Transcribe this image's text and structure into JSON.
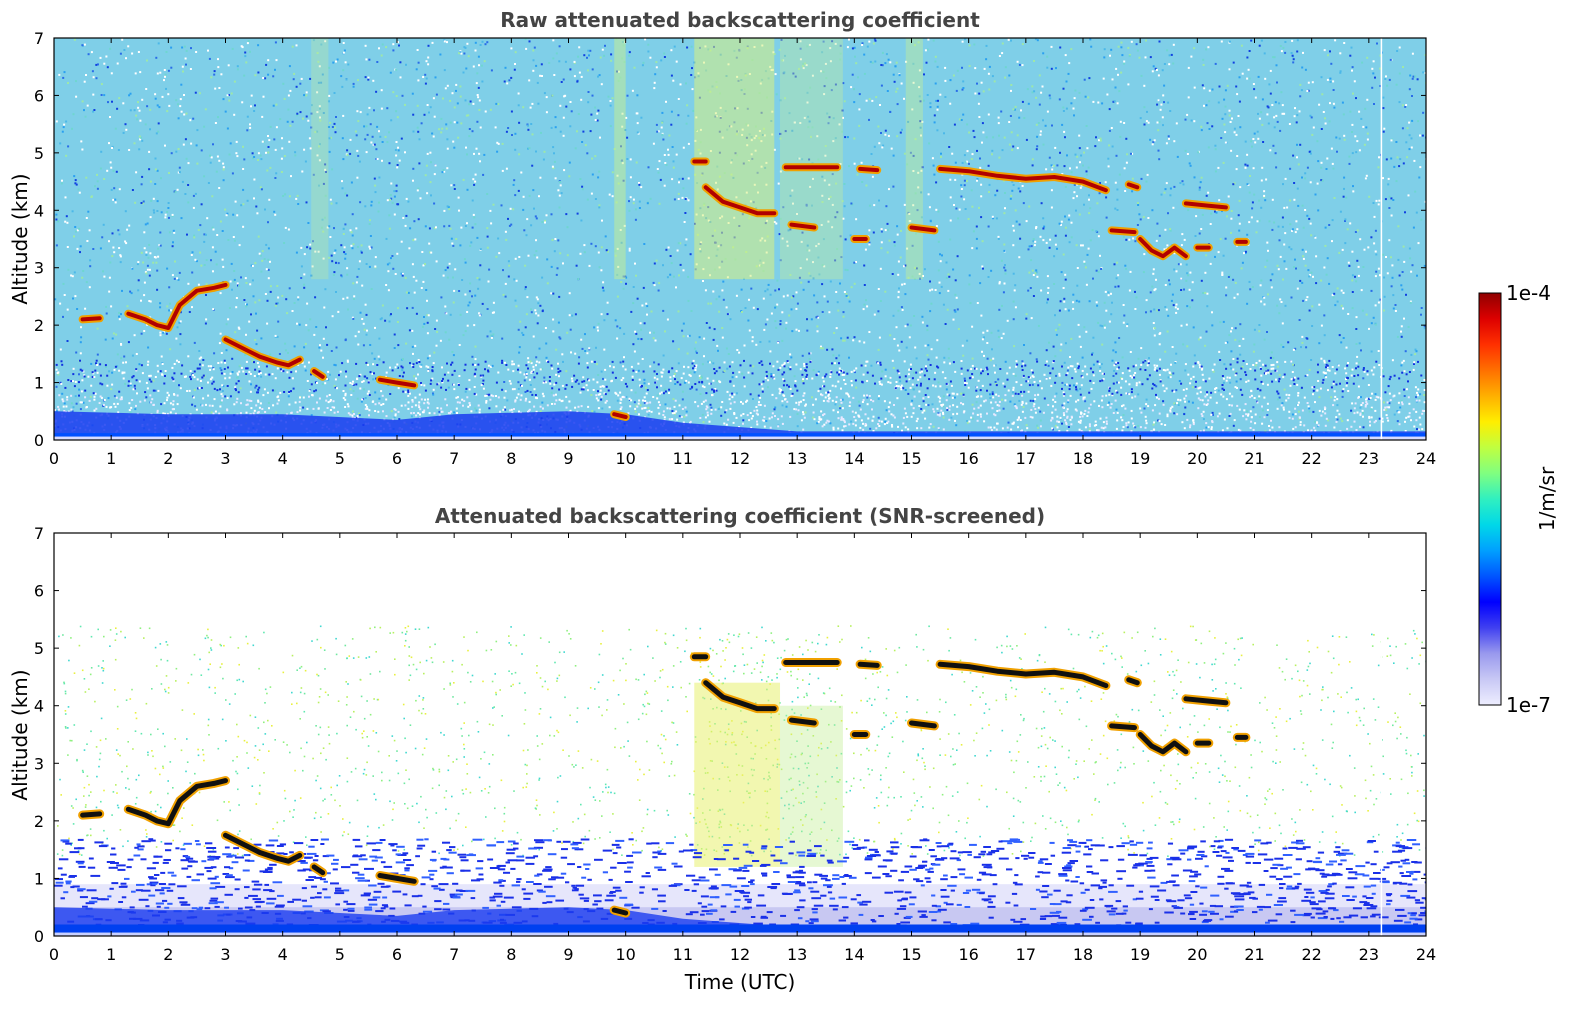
{
  "chart_data": [
    {
      "type": "heatmap",
      "title": "Raw attenuated backscattering coefficient",
      "xlabel": "",
      "ylabel": "Altitude (km)",
      "xlim": [
        0,
        24
      ],
      "ylim": [
        0,
        7
      ],
      "xticks": [
        "0",
        "1",
        "2",
        "3",
        "4",
        "5",
        "6",
        "7",
        "8",
        "9",
        "10",
        "11",
        "12",
        "13",
        "14",
        "15",
        "16",
        "17",
        "18",
        "19",
        "20",
        "21",
        "22",
        "23",
        "24"
      ],
      "yticks": [
        "0",
        "1",
        "2",
        "3",
        "4",
        "5",
        "6",
        "7"
      ],
      "features": {
        "boundary_layer": [
          [
            0,
            0.5
          ],
          [
            2,
            0.45
          ],
          [
            4,
            0.45
          ],
          [
            6,
            0.35
          ],
          [
            7,
            0.45
          ],
          [
            9,
            0.5
          ],
          [
            10,
            0.45
          ],
          [
            11,
            0.3
          ],
          [
            13,
            0.15
          ],
          [
            24,
            0.15
          ]
        ],
        "cloud_layers": [
          {
            "x": [
              0.5,
              0.8
            ],
            "y": [
              2.1,
              2.12
            ]
          },
          {
            "x": [
              1.3,
              1.6,
              1.8,
              2.0,
              2.2,
              2.5,
              2.8,
              3.0
            ],
            "y": [
              2.2,
              2.1,
              2.0,
              1.95,
              2.35,
              2.6,
              2.65,
              2.7
            ]
          },
          {
            "x": [
              3.0,
              3.3,
              3.6,
              3.9,
              4.1,
              4.3
            ],
            "y": [
              1.75,
              1.6,
              1.45,
              1.35,
              1.3,
              1.4
            ]
          },
          {
            "x": [
              4.55,
              4.7
            ],
            "y": [
              1.2,
              1.1
            ]
          },
          {
            "x": [
              5.7,
              6.0,
              6.3
            ],
            "y": [
              1.05,
              1.0,
              0.95
            ]
          },
          {
            "x": [
              9.8,
              10.0
            ],
            "y": [
              0.45,
              0.4
            ]
          },
          {
            "x": [
              11.2,
              11.4
            ],
            "y": [
              4.85,
              4.85
            ]
          },
          {
            "x": [
              11.4,
              11.7,
              12.0,
              12.3,
              12.6
            ],
            "y": [
              4.4,
              4.15,
              4.05,
              3.95,
              3.95
            ]
          },
          {
            "x": [
              12.9,
              13.3
            ],
            "y": [
              3.75,
              3.7
            ]
          },
          {
            "x": [
              12.8,
              13.7
            ],
            "y": [
              4.75,
              4.75
            ]
          },
          {
            "x": [
              14.1,
              14.4
            ],
            "y": [
              4.72,
              4.7
            ]
          },
          {
            "x": [
              14.0,
              14.2
            ],
            "y": [
              3.5,
              3.5
            ]
          },
          {
            "x": [
              15.0,
              15.4
            ],
            "y": [
              3.7,
              3.65
            ]
          },
          {
            "x": [
              15.5,
              16.0,
              16.5,
              17.0,
              17.5,
              18.0,
              18.4
            ],
            "y": [
              4.72,
              4.68,
              4.6,
              4.55,
              4.58,
              4.5,
              4.35
            ]
          },
          {
            "x": [
              18.5,
              18.9
            ],
            "y": [
              3.65,
              3.62
            ]
          },
          {
            "x": [
              18.8,
              18.95
            ],
            "y": [
              4.45,
              4.4
            ]
          },
          {
            "x": [
              19.0,
              19.2,
              19.4,
              19.6,
              19.8
            ],
            "y": [
              3.5,
              3.3,
              3.2,
              3.35,
              3.2
            ]
          },
          {
            "x": [
              19.8,
              20.2,
              20.5
            ],
            "y": [
              4.12,
              4.08,
              4.05
            ]
          },
          {
            "x": [
              20.0,
              20.2
            ],
            "y": [
              3.35,
              3.35
            ]
          },
          {
            "x": [
              20.7,
              20.85
            ],
            "y": [
              3.45,
              3.45
            ]
          }
        ]
      }
    },
    {
      "type": "heatmap",
      "title": "Attenuated backscattering coefficient (SNR-screened)",
      "xlabel": "Time (UTC)",
      "ylabel": "Altitude (km)",
      "xlim": [
        0,
        24
      ],
      "ylim": [
        0,
        7
      ],
      "xticks": [
        "0",
        "1",
        "2",
        "3",
        "4",
        "5",
        "6",
        "7",
        "8",
        "9",
        "10",
        "11",
        "12",
        "13",
        "14",
        "15",
        "16",
        "17",
        "18",
        "19",
        "20",
        "21",
        "22",
        "23",
        "24"
      ],
      "yticks": [
        "0",
        "1",
        "2",
        "3",
        "4",
        "5",
        "6",
        "7"
      ]
    }
  ],
  "colorbar": {
    "label": "1/m/sr",
    "max_label": "1e-4",
    "min_label": "1e-7",
    "colors": [
      "#eeeeff",
      "#c8c8f5",
      "#9999ee",
      "#4040f0",
      "#0000ff",
      "#0055ff",
      "#00a0ff",
      "#00d8e8",
      "#30f0c0",
      "#80ff80",
      "#c0ff40",
      "#ffee00",
      "#ffb000",
      "#ff7000",
      "#ff3000",
      "#dd0000",
      "#900000"
    ]
  }
}
